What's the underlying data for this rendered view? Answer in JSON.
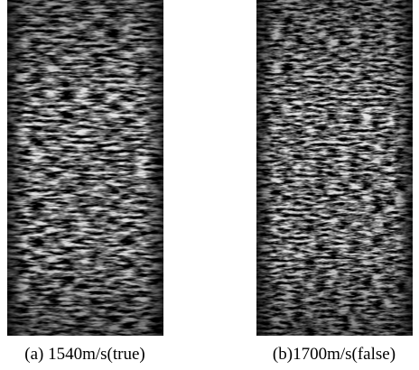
{
  "panels": [
    {
      "caption": "(a) 1540m/s(true)"
    },
    {
      "caption": "(b)1700m/s(false)"
    }
  ]
}
